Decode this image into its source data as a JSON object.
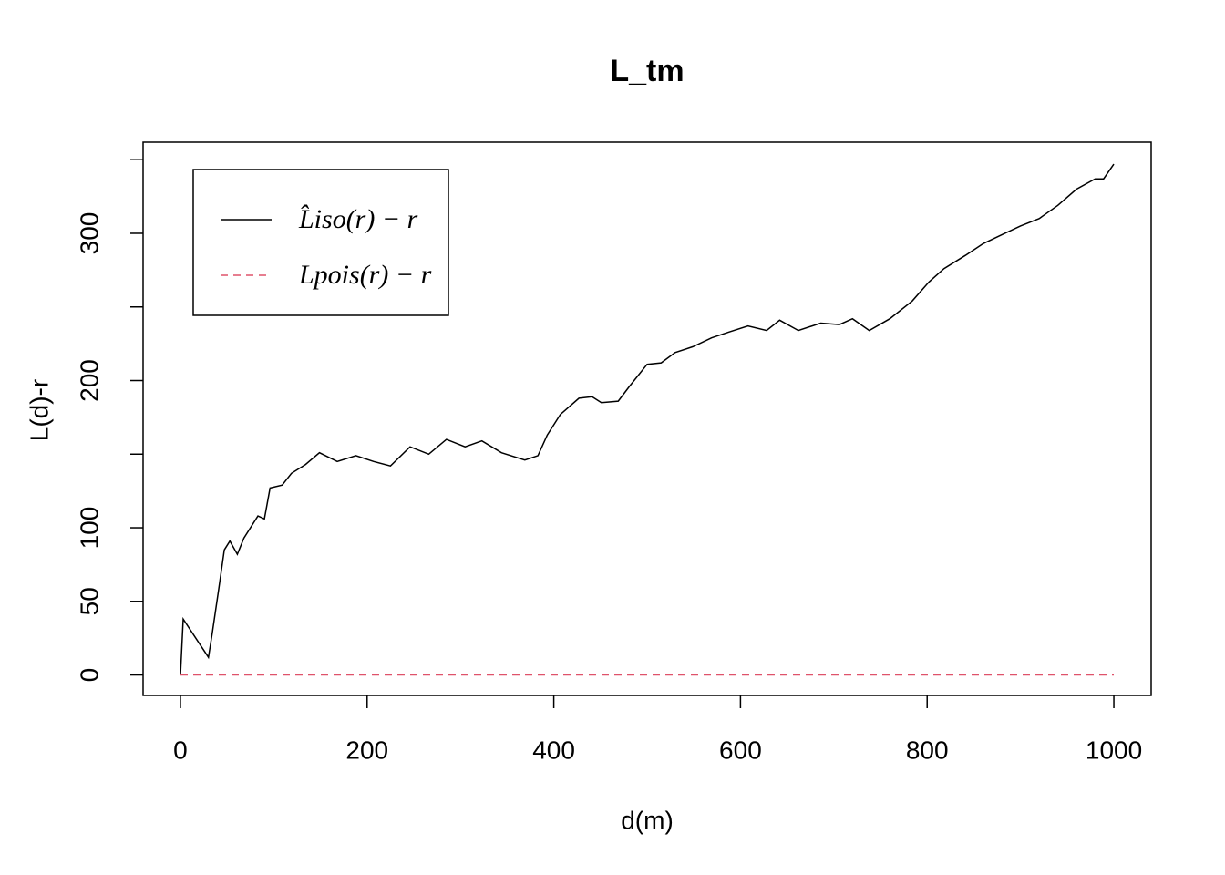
{
  "chart_data": {
    "type": "line",
    "title": "L_tm",
    "x_label": "d(m)",
    "y_label": "L(d)-r",
    "xlim": [
      -40,
      1040
    ],
    "ylim": [
      -13.9,
      361.9
    ],
    "xticks": [
      0,
      200,
      400,
      600,
      800,
      1000
    ],
    "yticks": [
      0,
      50,
      100,
      {
        "value": 150,
        "label": null
      },
      200,
      {
        "value": 250,
        "label": null
      },
      300,
      {
        "value": 350,
        "label": null
      }
    ],
    "legend": "top-left",
    "series": [
      {
        "name": "L̂iso(r) − r",
        "color": "#000000",
        "linestyle": "solid",
        "x": [
          0,
          3,
          30,
          34,
          41,
          47,
          53,
          61,
          68,
          83,
          90,
          96,
          109,
          119,
          134,
          149,
          168,
          188,
          207,
          225,
          246,
          266,
          285,
          305,
          323,
          344,
          369,
          383,
          393,
          407,
          427,
          441,
          451,
          469,
          481,
          500,
          515,
          530,
          549,
          569,
          588,
          608,
          628,
          642,
          662,
          686,
          706,
          720,
          738,
          760,
          784,
          802,
          818,
          841,
          860,
          880,
          900,
          920,
          940,
          960,
          980,
          989,
          1000
        ],
        "values": [
          0,
          38,
          12,
          28,
          58,
          85,
          91,
          82,
          93,
          108,
          106,
          127,
          129,
          137,
          143,
          151,
          145,
          149,
          145,
          142,
          155,
          150,
          160,
          155,
          159,
          151,
          146,
          149,
          163,
          177,
          188,
          189,
          185,
          186,
          196,
          211,
          212,
          219,
          223,
          229,
          233,
          237,
          234,
          241,
          234,
          239,
          238,
          242,
          234,
          242,
          254,
          267,
          276,
          285,
          293,
          299,
          305,
          310,
          319,
          330,
          337,
          337,
          347
        ]
      },
      {
        "name": "Lpois(r) − r",
        "color": "#df536b",
        "linestyle": "dashed",
        "x": [
          0,
          1000
        ],
        "values": [
          0,
          0
        ]
      }
    ]
  }
}
